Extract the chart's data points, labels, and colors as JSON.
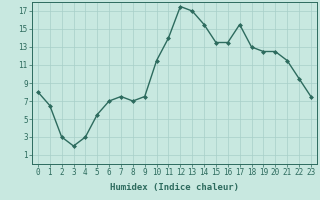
{
  "x": [
    0,
    1,
    2,
    3,
    4,
    5,
    6,
    7,
    8,
    9,
    10,
    11,
    12,
    13,
    14,
    15,
    16,
    17,
    18,
    19,
    20,
    21,
    22,
    23
  ],
  "y": [
    8.0,
    6.5,
    3.0,
    2.0,
    3.0,
    5.5,
    7.0,
    7.5,
    7.0,
    7.5,
    11.5,
    14.0,
    17.5,
    17.0,
    15.5,
    13.5,
    13.5,
    15.5,
    13.0,
    12.5,
    12.5,
    11.5,
    9.5,
    7.5
  ],
  "xlabel": "Humidex (Indice chaleur)",
  "line_color": "#2d6b5e",
  "marker_color": "#2d6b5e",
  "bg_color": "#c8e8e0",
  "grid_color": "#a8cfc8",
  "xlim": [
    -0.5,
    23.5
  ],
  "ylim": [
    0,
    18
  ],
  "yticks": [
    1,
    3,
    5,
    7,
    9,
    11,
    13,
    15,
    17
  ],
  "xticks": [
    0,
    1,
    2,
    3,
    4,
    5,
    6,
    7,
    8,
    9,
    10,
    11,
    12,
    13,
    14,
    15,
    16,
    17,
    18,
    19,
    20,
    21,
    22,
    23
  ],
  "xlabel_fontsize": 6.5,
  "tick_fontsize": 5.5,
  "linewidth": 1.0,
  "markersize": 2.0
}
